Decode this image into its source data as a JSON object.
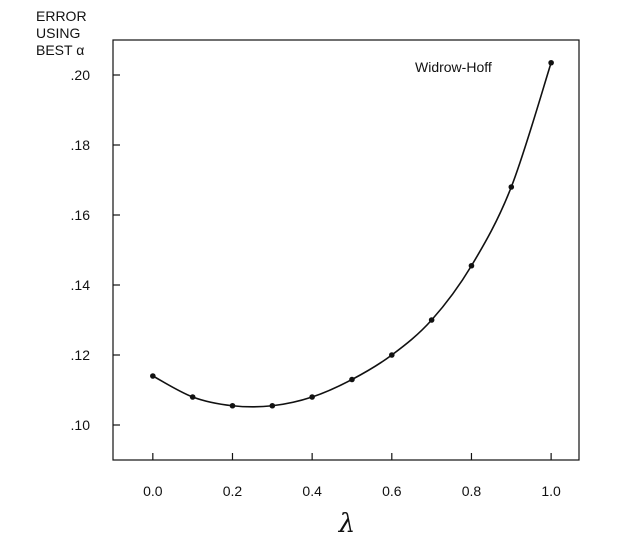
{
  "chart_data": {
    "type": "line",
    "ylabel_lines": [
      "ERROR",
      "USING",
      "BEST α"
    ],
    "xlabel": "λ",
    "annotation": "Widrow-Hoff",
    "x": [
      0.0,
      0.1,
      0.2,
      0.3,
      0.4,
      0.5,
      0.6,
      0.7,
      0.8,
      0.9,
      1.0
    ],
    "y": [
      0.114,
      0.108,
      0.1055,
      0.1055,
      0.108,
      0.113,
      0.12,
      0.13,
      0.1455,
      0.168,
      0.2035
    ],
    "xlim": [
      -0.1,
      1.07
    ],
    "ylim": [
      0.09,
      0.21
    ],
    "xticks": [
      0.0,
      0.2,
      0.4,
      0.6,
      0.8,
      1.0
    ],
    "xtick_labels": [
      "0.0",
      "0.2",
      "0.4",
      "0.6",
      "0.8",
      "1.0"
    ],
    "yticks": [
      0.1,
      0.12,
      0.14,
      0.16,
      0.18,
      0.2
    ],
    "ytick_labels": [
      ".10",
      ".12",
      ".14",
      ".16",
      ".18",
      ".20"
    ],
    "grid": false,
    "legend": "none",
    "color": "#111111"
  }
}
